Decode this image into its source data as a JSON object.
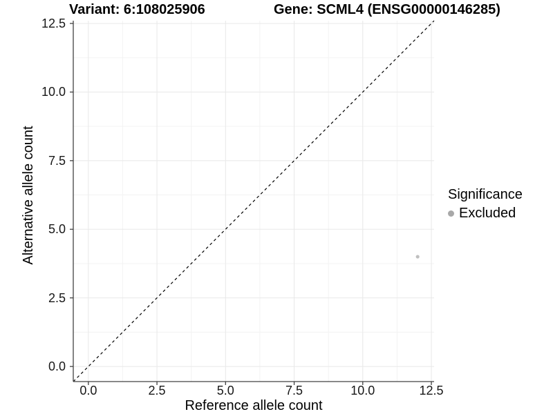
{
  "header": {
    "variant_title": "Variant: 6:108025906",
    "gene_title": "Gene: SCML4 (ENSG00000146285)"
  },
  "chart_data": {
    "type": "scatter",
    "title_left": "Variant: 6:108025906",
    "title_right": "Gene: SCML4 (ENSG00000146285)",
    "xlabel": "Reference allele count",
    "ylabel": "Alternative allele count",
    "xlim": [
      -0.55,
      12.6
    ],
    "ylim": [
      -0.55,
      12.6
    ],
    "major_ticks": [
      0,
      2.5,
      5,
      7.5,
      10,
      12.5
    ],
    "tick_labels": [
      "0.0",
      "2.5",
      "5.0",
      "7.5",
      "10.0",
      "12.5"
    ],
    "minor_ticks": [
      1.25,
      3.75,
      6.25,
      8.75,
      11.25
    ],
    "grid": "major+minor",
    "reference_line": {
      "type": "identity",
      "equation": "y = x",
      "style": "dashed",
      "color": "#000000"
    },
    "series": [
      {
        "name": "Excluded",
        "color": "#bfbfbf",
        "points": [
          {
            "x": 12,
            "y": 4
          }
        ]
      }
    ],
    "legend": {
      "title": "Significance",
      "position": "right",
      "items": [
        {
          "label": "Excluded",
          "color": "#a8a8a8"
        }
      ]
    }
  },
  "colors": {
    "background": "#ffffff",
    "axis_line": "#404040",
    "tick_mark": "#404040",
    "grid_major": "#e8e8e8",
    "grid_minor": "#f3f3f3",
    "text": "#000000"
  }
}
